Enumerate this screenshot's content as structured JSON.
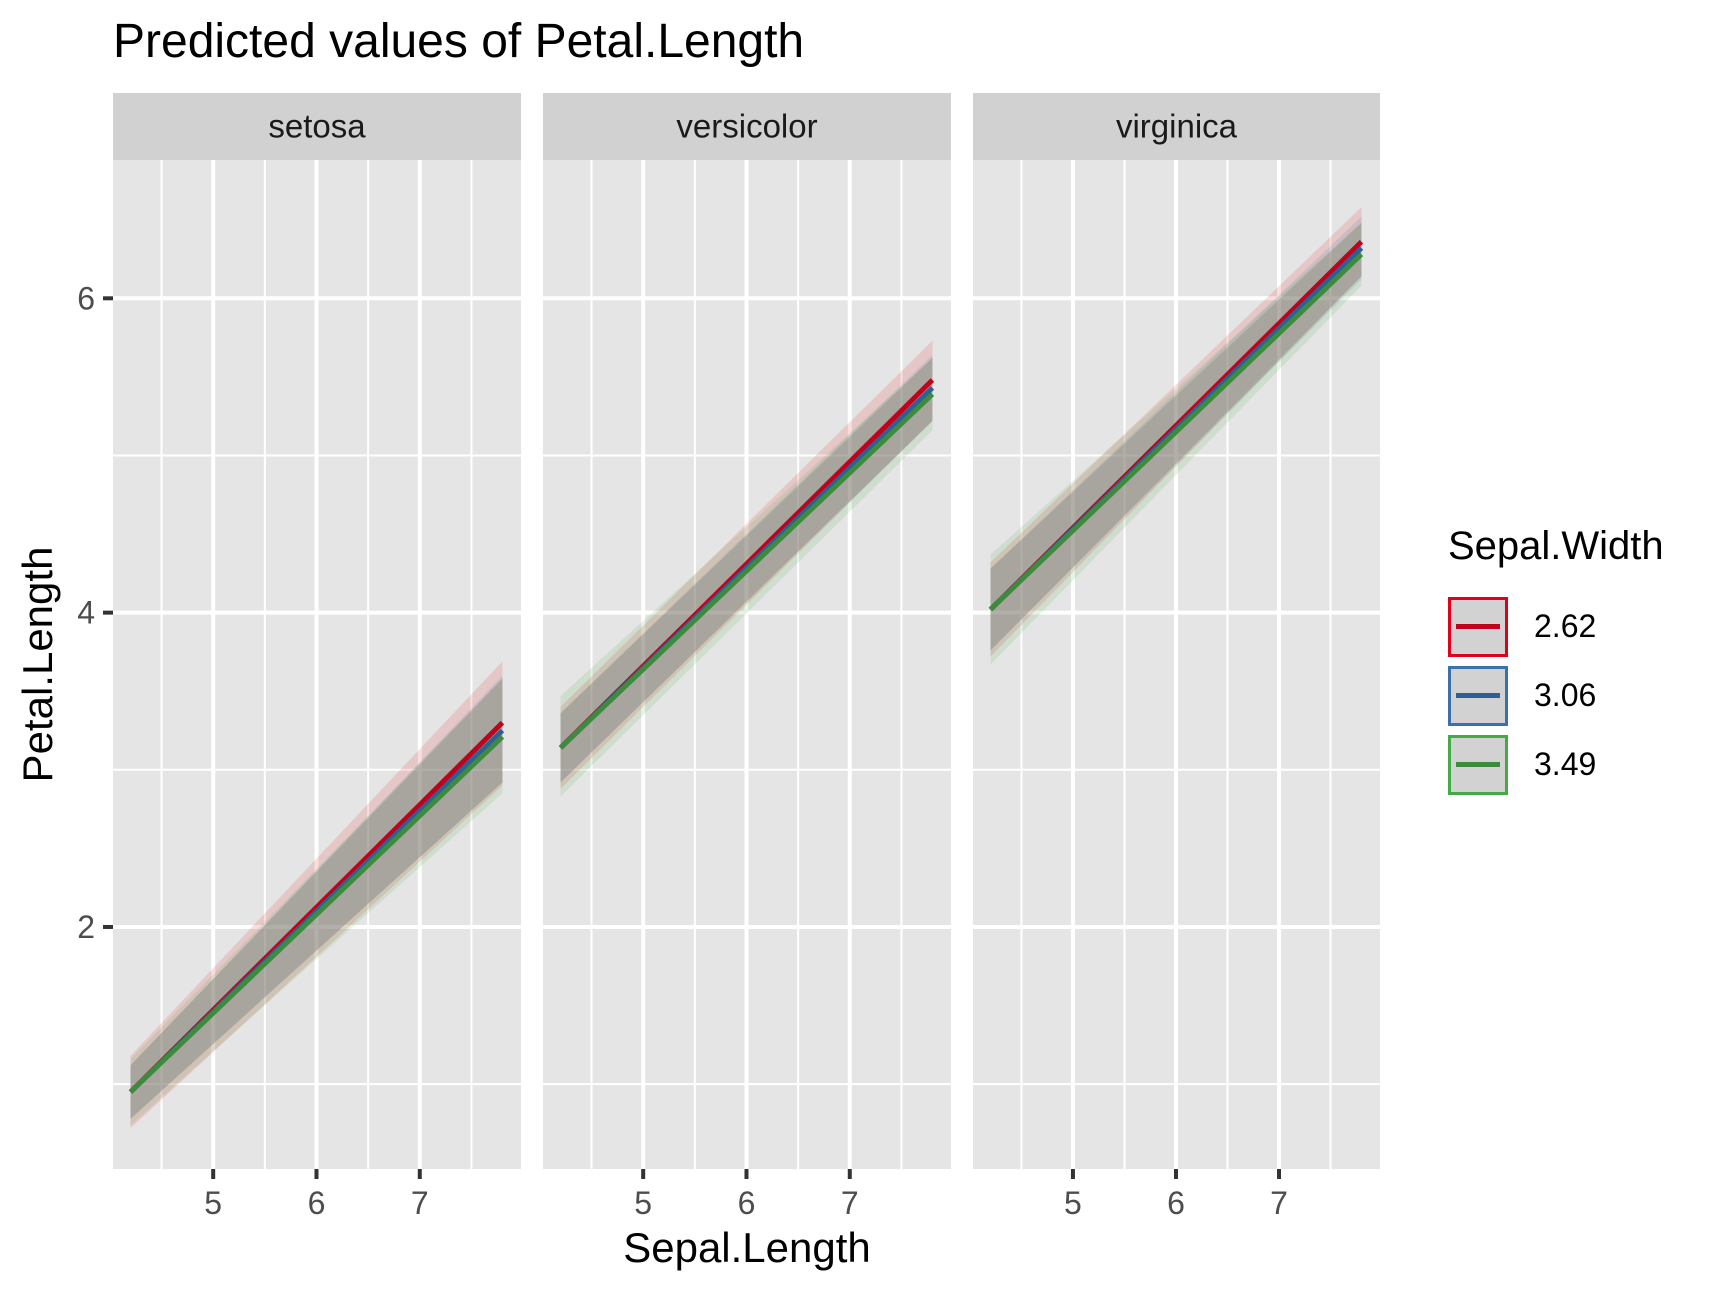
{
  "chart_data": {
    "type": "line",
    "title": "Predicted values of Petal.Length",
    "xlabel": "Sepal.Length",
    "ylabel": "Petal.Length",
    "facets": [
      "setosa",
      "versicolor",
      "virginica"
    ],
    "xlim": [
      4.03,
      7.98
    ],
    "ylim": [
      0.46,
      6.88
    ],
    "x_ticks": [
      5,
      6,
      7
    ],
    "y_ticks": [
      2,
      4,
      6
    ],
    "grid": true,
    "legend": {
      "title": "Sepal.Width",
      "position": "right",
      "entries": [
        "2.62",
        "3.06",
        "3.49"
      ]
    },
    "x": [
      4.2,
      7.8
    ],
    "series": [
      {
        "name": "2.62",
        "color": "#c0021c",
        "fill": "#e41a1c",
        "panels": {
          "setosa": {
            "y": [
              0.95,
              3.3
            ],
            "ci_low": [
              0.72,
              2.9
            ],
            "ci_high": [
              1.18,
              3.69
            ]
          },
          "versicolor": {
            "y": [
              3.14,
              5.48
            ],
            "ci_low": [
              2.88,
              5.22
            ],
            "ci_high": [
              3.4,
              5.73
            ]
          },
          "virginica": {
            "y": [
              4.02,
              6.36
            ],
            "ci_low": [
              3.72,
              6.14
            ],
            "ci_high": [
              4.32,
              6.58
            ]
          }
        }
      },
      {
        "name": "3.06",
        "color": "#2e5f95",
        "fill": "#377eb8",
        "panels": {
          "setosa": {
            "y": [
              0.95,
              3.25
            ],
            "ci_low": [
              0.78,
              2.92
            ],
            "ci_high": [
              1.12,
              3.6
            ]
          },
          "versicolor": {
            "y": [
              3.14,
              5.43
            ],
            "ci_low": [
              2.92,
              5.22
            ],
            "ci_high": [
              3.36,
              5.64
            ]
          },
          "virginica": {
            "y": [
              4.02,
              6.32
            ],
            "ci_low": [
              3.76,
              6.12
            ],
            "ci_high": [
              4.28,
              6.52
            ]
          }
        }
      },
      {
        "name": "3.49",
        "color": "#3d8b3d",
        "fill": "#4daf4a",
        "panels": {
          "setosa": {
            "y": [
              0.95,
              3.21
            ],
            "ci_low": [
              0.74,
              2.85
            ],
            "ci_high": [
              1.16,
              3.58
            ]
          },
          "versicolor": {
            "y": [
              3.14,
              5.39
            ],
            "ci_low": [
              2.83,
              5.16
            ],
            "ci_high": [
              3.47,
              5.62
            ]
          },
          "virginica": {
            "y": [
              4.02,
              6.28
            ],
            "ci_low": [
              3.67,
              6.08
            ],
            "ci_high": [
              4.37,
              6.48
            ]
          }
        }
      }
    ]
  },
  "title": "Predicted values of Petal.Length",
  "axes": {
    "x_title": "Sepal.Length",
    "y_title": "Petal.Length"
  },
  "legend": {
    "title": "Sepal.Width",
    "items": [
      {
        "label": "2.62",
        "color": "#c0021c",
        "border": "#e0001a"
      },
      {
        "label": "3.06",
        "color": "#2e5f95",
        "border": "#3a70b0"
      },
      {
        "label": "3.49",
        "color": "#3d8b3d",
        "border": "#45aa45"
      }
    ]
  },
  "colors": {
    "panel_bg": "#e5e5e5",
    "strip_bg": "#d1d1d1",
    "grid": "#ffffff"
  }
}
